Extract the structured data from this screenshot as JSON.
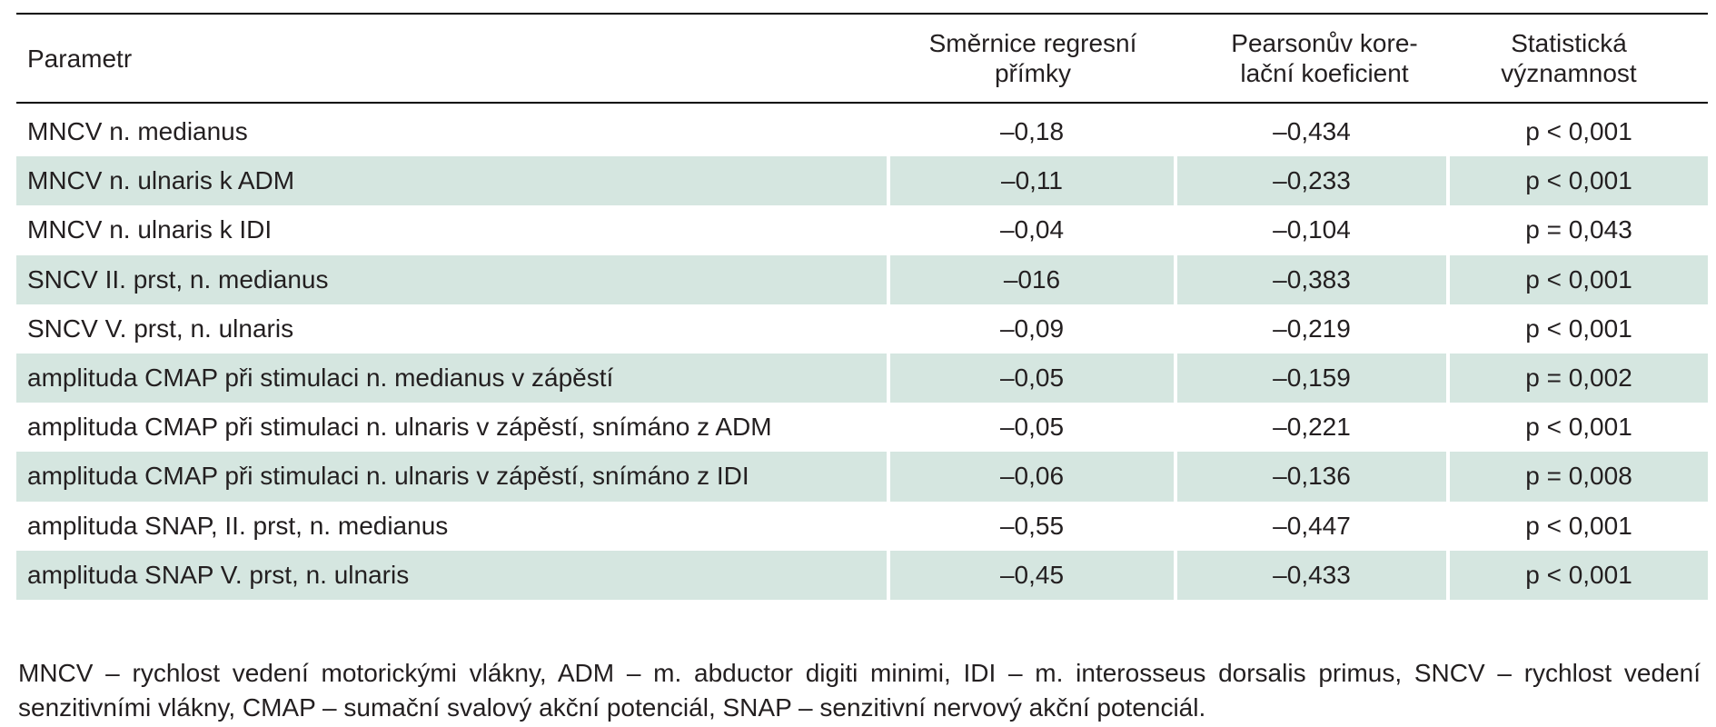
{
  "table": {
    "headers": [
      "Parametr",
      "Směrnice regresní\npřímky",
      "Pearsonův kore-\nlační koeficient",
      "Statistická\nvýznamnost"
    ],
    "rows": [
      {
        "parametr": "MNCV n. medianus",
        "smernice": "–0,18",
        "pearson": "–0,434",
        "vyznamnost": "p < 0,001"
      },
      {
        "parametr": "MNCV n. ulnaris k ADM",
        "smernice": "–0,11",
        "pearson": "–0,233",
        "vyznamnost": "p < 0,001"
      },
      {
        "parametr": "MNCV n. ulnaris k IDI",
        "smernice": "–0,04",
        "pearson": "–0,104",
        "vyznamnost": "p = 0,043"
      },
      {
        "parametr": "SNCV II. prst, n. medianus",
        "smernice": "–016",
        "pearson": "–0,383",
        "vyznamnost": "p < 0,001"
      },
      {
        "parametr": "SNCV V. prst, n. ulnaris",
        "smernice": "–0,09",
        "pearson": "–0,219",
        "vyznamnost": "p < 0,001"
      },
      {
        "parametr": "amplituda CMAP při stimulaci n. medianus v zápěstí",
        "smernice": "–0,05",
        "pearson": "–0,159",
        "vyznamnost": "p = 0,002"
      },
      {
        "parametr": "amplituda CMAP při stimulaci n. ulnaris v zápěstí, snímáno z ADM",
        "smernice": "–0,05",
        "pearson": "–0,221",
        "vyznamnost": "p < 0,001"
      },
      {
        "parametr": "amplituda CMAP při stimulaci n. ulnaris v zápěstí, snímáno z IDI",
        "smernice": "–0,06",
        "pearson": "–0,136",
        "vyznamnost": "p = 0,008"
      },
      {
        "parametr": "amplituda SNAP, II. prst, n. medianus",
        "smernice": "–0,55",
        "pearson": "–0,447",
        "vyznamnost": "p < 0,001"
      },
      {
        "parametr": "amplituda SNAP V. prst, n. ulnaris",
        "smernice": "–0,45",
        "pearson": "–0,433",
        "vyznamnost": "p < 0,001"
      }
    ]
  },
  "footnote": "MNCV – rychlost vedení motorickými vlákny, ADM – m. abductor digiti minimi, IDI – m. interosseus dorsalis primus, SNCV – rychlost vedení senzitivními vlákny, CMAP – sumační svalový akční potenciál, SNAP – senzitivní nervový akční potenciál.",
  "colors": {
    "row_shade": "#d5e6e0",
    "text": "#231f20",
    "rule": "#000000"
  }
}
